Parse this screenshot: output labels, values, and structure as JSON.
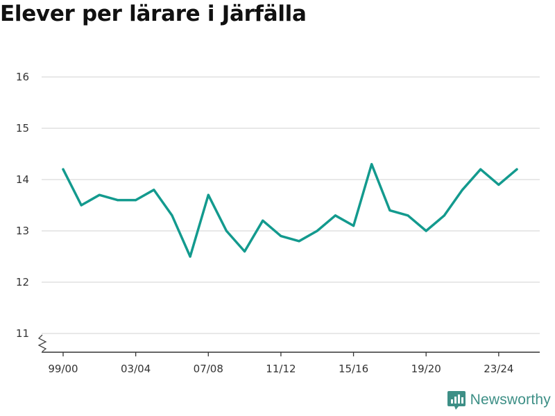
{
  "title": "Elever per lärare i Järfälla",
  "brand": {
    "name": "Newsworthy",
    "icon": "newsworthy-logo-icon",
    "color": "#3d8f86"
  },
  "colors": {
    "line": "#139a8e",
    "grid": "#d9d9d9",
    "axis": "#333333"
  },
  "chart_data": {
    "type": "line",
    "title": "Elever per lärare i Järfälla",
    "xlabel": "",
    "ylabel": "",
    "categories": [
      "99/00",
      "00/01",
      "01/02",
      "02/03",
      "03/04",
      "04/05",
      "05/06",
      "06/07",
      "07/08",
      "08/09",
      "09/10",
      "10/11",
      "11/12",
      "12/13",
      "13/14",
      "14/15",
      "15/16",
      "16/17",
      "17/18",
      "18/19",
      "19/20",
      "20/21",
      "21/22",
      "22/23",
      "23/24",
      "24/25"
    ],
    "xtick_labels": [
      "99/00",
      "03/04",
      "07/08",
      "11/12",
      "15/16",
      "19/20",
      "23/24"
    ],
    "series": [
      {
        "values": [
          14.2,
          13.5,
          13.7,
          13.6,
          13.6,
          13.8,
          13.3,
          12.5,
          13.7,
          13.0,
          12.6,
          13.2,
          12.9,
          12.8,
          13.0,
          13.3,
          13.1,
          14.3,
          13.4,
          13.3,
          13.0,
          13.3,
          13.8,
          14.2,
          13.9,
          14.2
        ]
      }
    ],
    "yticks": [
      11,
      12,
      13,
      14,
      15,
      16
    ],
    "ylim": [
      10.7,
      16.3
    ],
    "axis_break": true,
    "grid": true
  }
}
